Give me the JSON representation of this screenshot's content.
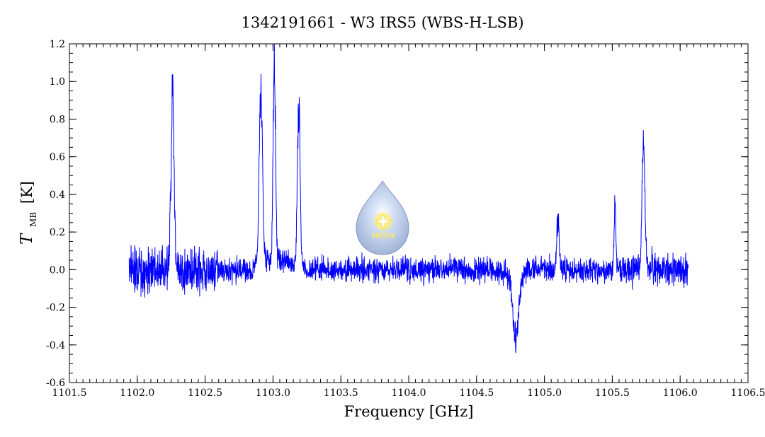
{
  "chart_data": {
    "type": "line",
    "title": "1342191661 - W3 IRS5 (WBS-H-LSB)",
    "xlabel": "Frequency [GHz]",
    "ylabel_symbol": "T",
    "ylabel_subscript": "MB",
    "ylabel_unit": "[K]",
    "xlim": [
      1101.5,
      1106.5
    ],
    "ylim": [
      -0.6,
      1.2
    ],
    "x_ticks": [
      1101.5,
      1102.0,
      1102.5,
      1103.0,
      1103.5,
      1104.0,
      1104.5,
      1105.0,
      1105.5,
      1106.0,
      1106.5
    ],
    "x_tick_labels": [
      "1101.5",
      "1102.0",
      "1102.5",
      "1103.0",
      "1103.5",
      "1104.0",
      "1104.5",
      "1105.0",
      "1105.5",
      "1106.0",
      "1106.5"
    ],
    "y_ticks": [
      -0.6,
      -0.4,
      -0.2,
      0.0,
      0.2,
      0.4,
      0.6,
      0.8,
      1.0,
      1.2
    ],
    "y_tick_labels": [
      "-0.6",
      "-0.4",
      "-0.2",
      "0.0",
      "0.2",
      "0.4",
      "0.6",
      "0.8",
      "1.0",
      "1.2"
    ],
    "grid": false,
    "line_color": "#0000ff",
    "series": [
      {
        "x_range": [
          1101.94,
          1106.06
        ],
        "baseline": 0.0,
        "noise_rms": 0.045,
        "features": [
          {
            "center": 1102.26,
            "peak": 0.92
          },
          {
            "center": 1102.91,
            "peak": 0.95
          },
          {
            "center": 1103.01,
            "peak": 1.02
          },
          {
            "center": 1103.19,
            "peak": 0.9
          },
          {
            "center": 1104.79,
            "peak": -0.36
          },
          {
            "center": 1105.1,
            "peak": 0.29
          },
          {
            "center": 1105.52,
            "peak": 0.33
          },
          {
            "center": 1105.73,
            "peak": 0.72
          }
        ]
      }
    ]
  },
  "watermark": {
    "text": "WISH",
    "colors": {
      "body": "#8aa6d6",
      "glow": "#ffe94d"
    }
  }
}
